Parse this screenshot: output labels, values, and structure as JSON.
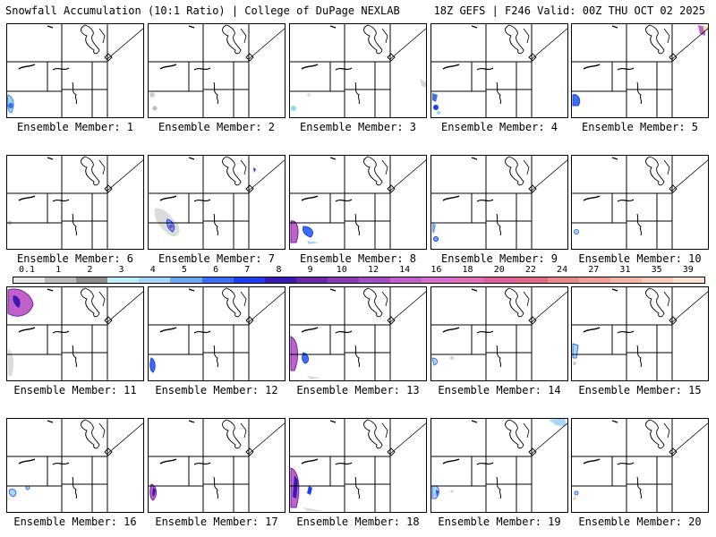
{
  "header": {
    "left": "Snowfall Accumulation (10:1 Ratio) | College of DuPage NEXLAB",
    "right": "18Z GEFS | F246 Valid: 00Z THU OCT 02 2025"
  },
  "colorbar": {
    "labels": [
      "0.1",
      "1",
      "2",
      "3",
      "4",
      "5",
      "6",
      "7",
      "8",
      "9",
      "10",
      "12",
      "14",
      "16",
      "18",
      "20",
      "22",
      "24",
      "27",
      "31",
      "35",
      "39"
    ],
    "colors": [
      "#e8e8e8",
      "#bdbdbd",
      "#8c8c8c",
      "#bfeef8",
      "#a8d6f8",
      "#6fa6f3",
      "#3b6ff0",
      "#1f3ef0",
      "#3a1ab0",
      "#6a28a8",
      "#8a3cb4",
      "#a050c0",
      "#c060c8",
      "#d670cc",
      "#e070b8",
      "#e0609c",
      "#e06a88",
      "#e88a88",
      "#eea096",
      "#f2b8a6",
      "#f6ccba",
      "#fae2d2"
    ]
  },
  "members": [
    {
      "label": "Ensemble Member: 1"
    },
    {
      "label": "Ensemble Member: 2"
    },
    {
      "label": "Ensemble Member: 3"
    },
    {
      "label": "Ensemble Member: 4"
    },
    {
      "label": "Ensemble Member: 5"
    },
    {
      "label": "Ensemble Member: 6"
    },
    {
      "label": "Ensemble Member: 7"
    },
    {
      "label": "Ensemble Member: 8"
    },
    {
      "label": "Ensemble Member: 9"
    },
    {
      "label": "Ensemble Member: 10"
    },
    {
      "label": "Ensemble Member: 11"
    },
    {
      "label": "Ensemble Member: 12"
    },
    {
      "label": "Ensemble Member: 13"
    },
    {
      "label": "Ensemble Member: 14"
    },
    {
      "label": "Ensemble Member: 15"
    },
    {
      "label": "Ensemble Member: 16"
    },
    {
      "label": "Ensemble Member: 17"
    },
    {
      "label": "Ensemble Member: 18"
    },
    {
      "label": "Ensemble Member: 19"
    },
    {
      "label": "Ensemble Member: 20"
    }
  ]
}
